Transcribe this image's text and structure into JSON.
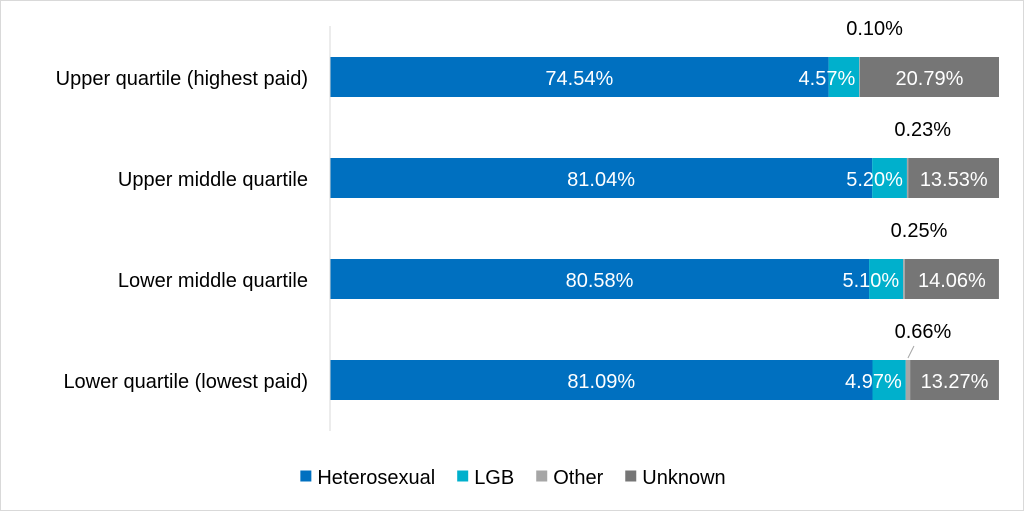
{
  "chart_data": {
    "type": "bar",
    "orientation": "horizontal",
    "stacked": true,
    "categories": [
      "Upper quartile (highest paid)",
      "Upper middle quartile",
      "Lower middle quartile",
      "Lower quartile (lowest paid)"
    ],
    "series": [
      {
        "name": "Heterosexual",
        "color": "#0070c0",
        "values": [
          74.54,
          81.04,
          80.58,
          81.09
        ],
        "labels": [
          "74.54%",
          "81.04%",
          "80.58%",
          "81.09%"
        ]
      },
      {
        "name": "LGB",
        "color": "#00b0cc",
        "values": [
          4.57,
          5.2,
          5.1,
          4.97
        ],
        "labels": [
          "4.57%",
          "5.20%",
          "5.10%",
          "4.97%"
        ]
      },
      {
        "name": "Other",
        "color": "#a6a6a6",
        "values": [
          0.1,
          0.23,
          0.25,
          0.66
        ],
        "labels": [
          "0.10%",
          "0.23%",
          "0.25%",
          "0.66%"
        ]
      },
      {
        "name": "Unknown",
        "color": "#767676",
        "values": [
          20.79,
          13.53,
          14.06,
          13.27
        ],
        "labels": [
          "20.79%",
          "13.53%",
          "14.06%",
          "13.27%"
        ]
      }
    ],
    "xlim": [
      0,
      100
    ],
    "grid": false,
    "legend_position": "bottom"
  }
}
